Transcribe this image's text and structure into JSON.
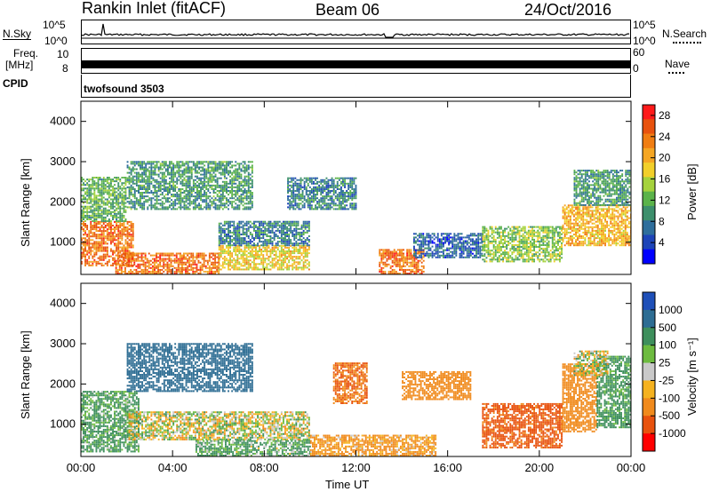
{
  "header": {
    "station": "Rankin Inlet (fitACF)",
    "beam": "Beam 06",
    "date": "24/Oct/2016"
  },
  "top_panels": {
    "nsky_label": "N.Sky",
    "nsearch_label": "N.Search",
    "nsky_ticks": [
      "10^5",
      "10^0"
    ],
    "nsearch_ticks": [
      "10^5",
      "10^0"
    ],
    "freq_label_1": "Freq.",
    "freq_label_2": "[MHz]",
    "freq_ticks": [
      "10",
      "8"
    ],
    "nave_label": "Nave",
    "nave_ticks": [
      "60",
      "0"
    ],
    "cpid_label": "CPID",
    "cpid_value": "twofsound 3503"
  },
  "colors": {
    "power_scale": [
      "#0000ff",
      "#1d44b8",
      "#2e6e9c",
      "#3d8f6c",
      "#5bb34a",
      "#a5d23c",
      "#f2cf2a",
      "#f5a623",
      "#f07d12",
      "#e8520e",
      "#ff1a1a"
    ],
    "velocity_scale": [
      "#ff0000",
      "#e8520e",
      "#f08a1c",
      "#f5b21f",
      "#c9c9c9",
      "#6dbb3f",
      "#3e8f5c",
      "#2d6d93",
      "#1e4fb8"
    ]
  },
  "chart_data": [
    {
      "type": "heatmap",
      "title": "Power",
      "ylabel": "Slant Range [km]",
      "xlabel": "",
      "x_ticks": [
        "00:00",
        "04:00",
        "08:00",
        "12:00",
        "16:00",
        "20:00",
        "00:00"
      ],
      "y_ticks": [
        "1000",
        "2000",
        "3000",
        "4000"
      ],
      "ylim": [
        200,
        4500
      ],
      "xlim_hours": [
        0,
        24
      ],
      "colorbar_label": "Power [dB]",
      "colorbar_ticks": [
        "28",
        "24",
        "20",
        "16",
        "12",
        "8",
        "4"
      ],
      "clim": [
        0,
        30
      ],
      "regions": [
        {
          "t0": 0.0,
          "t1": 2.3,
          "r0": 400,
          "r1": 1500,
          "value": 24
        },
        {
          "t0": 0.0,
          "t1": 2.0,
          "r0": 1500,
          "r1": 2600,
          "value": 12
        },
        {
          "t0": 1.5,
          "t1": 6.0,
          "r0": 200,
          "r1": 700,
          "value": 24
        },
        {
          "t0": 6.0,
          "t1": 10.0,
          "r0": 300,
          "r1": 900,
          "value": 18
        },
        {
          "t0": 2.0,
          "t1": 7.5,
          "r0": 1800,
          "r1": 3000,
          "value": 10
        },
        {
          "t0": 6.0,
          "t1": 10.0,
          "r0": 900,
          "r1": 1500,
          "value": 8
        },
        {
          "t0": 9.0,
          "t1": 12.0,
          "r0": 1800,
          "r1": 2600,
          "value": 8
        },
        {
          "t0": 13.0,
          "t1": 15.0,
          "r0": 200,
          "r1": 800,
          "value": 24
        },
        {
          "t0": 14.5,
          "t1": 17.5,
          "r0": 600,
          "r1": 1200,
          "value": 6
        },
        {
          "t0": 17.5,
          "t1": 21.0,
          "r0": 500,
          "r1": 1400,
          "value": 14
        },
        {
          "t0": 21.0,
          "t1": 24.0,
          "r0": 900,
          "r1": 1900,
          "value": 20
        },
        {
          "t0": 21.5,
          "t1": 24.0,
          "r0": 1900,
          "r1": 2800,
          "value": 10
        }
      ]
    },
    {
      "type": "heatmap",
      "title": "Velocity",
      "ylabel": "Slant Range [km]",
      "xlabel": "Time UT",
      "x_ticks": [
        "00:00",
        "04:00",
        "08:00",
        "12:00",
        "16:00",
        "20:00",
        "00:00"
      ],
      "y_ticks": [
        "1000",
        "2000",
        "3000",
        "4000"
      ],
      "ylim": [
        200,
        4500
      ],
      "xlim_hours": [
        0,
        24
      ],
      "colorbar_label": "Velocity [m s⁻¹]",
      "colorbar_ticks": [
        "1000",
        "500",
        "100",
        "25",
        "-25",
        "-100",
        "-500",
        "-1000"
      ],
      "clim": [
        -1000,
        1000
      ],
      "regions": [
        {
          "t0": 0.0,
          "t1": 2.5,
          "r0": 300,
          "r1": 1800,
          "value": 150
        },
        {
          "t0": 2.0,
          "t1": 10.0,
          "r0": 600,
          "r1": 1300,
          "value": 0
        },
        {
          "t0": 2.0,
          "t1": 7.5,
          "r0": 1800,
          "r1": 3000,
          "value": 700
        },
        {
          "t0": 5.0,
          "t1": 10.0,
          "r0": 200,
          "r1": 600,
          "value": 120
        },
        {
          "t0": 10.0,
          "t1": 15.5,
          "r0": 200,
          "r1": 700,
          "value": -150
        },
        {
          "t0": 11.0,
          "t1": 12.5,
          "r0": 1500,
          "r1": 2500,
          "value": -500
        },
        {
          "t0": 14.0,
          "t1": 17.0,
          "r0": 1600,
          "r1": 2300,
          "value": -300
        },
        {
          "t0": 17.5,
          "t1": 21.0,
          "r0": 400,
          "r1": 1500,
          "value": -600
        },
        {
          "t0": 21.0,
          "t1": 22.5,
          "r0": 800,
          "r1": 2500,
          "value": -300
        },
        {
          "t0": 22.5,
          "t1": 24.0,
          "r0": 900,
          "r1": 2700,
          "value": 200
        },
        {
          "t0": 21.5,
          "t1": 23.0,
          "r0": 2200,
          "r1": 2800,
          "value": 0
        }
      ]
    }
  ]
}
